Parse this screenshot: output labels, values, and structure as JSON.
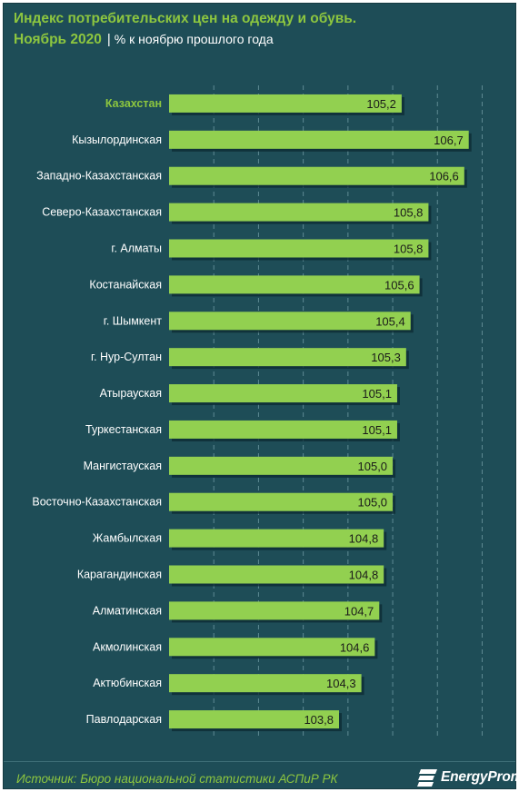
{
  "header": {
    "title": "Индекс потребительских цен на одежду и обувь.",
    "subtitle": "Ноябрь 2020",
    "separator": "|",
    "unit": "% к ноябрю прошлого года"
  },
  "footer": {
    "source": "Источник: Бюро национальной  статистики АСПиР РК",
    "brand": "EnergyProm"
  },
  "colors": {
    "background": "#1e4d57",
    "bar": "#92d050",
    "accent_text": "#8dc63f",
    "label_text": "#ffffff"
  },
  "icons": {
    "brand_logo": "energyprom-logo-icon"
  },
  "chart_data": {
    "type": "bar",
    "orientation": "horizontal",
    "title": "Индекс потребительских цен на одежду и обувь.",
    "subtitle": "Ноябрь 2020 | % к ноябрю прошлого года",
    "xlim": [
      100,
      107.6
    ],
    "grid": true,
    "highlight_category": "Казахстан",
    "categories": [
      "Казахстан",
      "Кызылординская",
      "Западно-Казахстанская",
      "Северо-Казахстанская",
      "г. Алматы",
      "Костанайская",
      "г. Шымкент",
      "г. Нур-Султан",
      "Атырауская",
      "Туркестанская",
      "Мангистауская",
      "Восточно-Казахстанская",
      "Жамбылская",
      "Карагандинская",
      "Алматинская",
      "Акмолинская",
      "Актюбинская",
      "Павлодарская"
    ],
    "values": [
      105.2,
      106.7,
      106.6,
      105.8,
      105.8,
      105.6,
      105.4,
      105.3,
      105.1,
      105.1,
      105.0,
      105.0,
      104.8,
      104.8,
      104.7,
      104.6,
      104.3,
      103.8
    ],
    "value_labels": [
      "105,2",
      "106,7",
      "106,6",
      "105,8",
      "105,8",
      "105,6",
      "105,4",
      "105,3",
      "105,1",
      "105,1",
      "105,0",
      "105,0",
      "104,8",
      "104,8",
      "104,7",
      "104,6",
      "104,3",
      "103,8"
    ]
  }
}
